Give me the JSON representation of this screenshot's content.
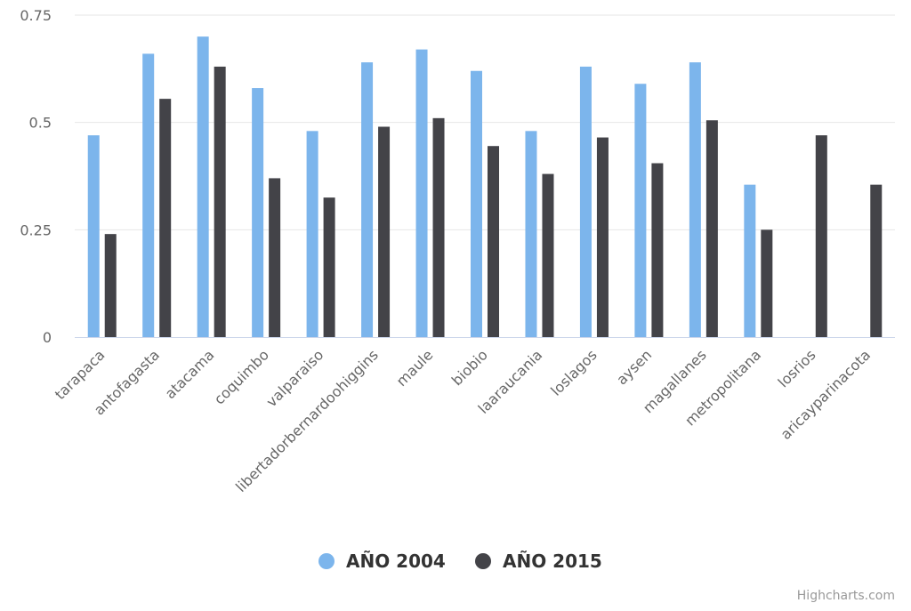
{
  "chart_data": {
    "type": "bar",
    "categories": [
      "tarapaca",
      "antofagasta",
      "atacama",
      "coquimbo",
      "valparaiso",
      "libertadorbernardoohiggins",
      "maule",
      "biobio",
      "laaraucania",
      "loslagos",
      "aysen",
      "magallanes",
      "metropolitana",
      "losrios",
      "aricayparinacota"
    ],
    "series": [
      {
        "name": "AÑO 2004",
        "color": "#7cb5ec",
        "values": [
          0.47,
          0.66,
          0.7,
          0.58,
          0.48,
          0.64,
          0.67,
          0.62,
          0.48,
          0.63,
          0.59,
          0.64,
          0.355,
          null,
          null
        ]
      },
      {
        "name": "AÑO 2015",
        "color": "#434348",
        "values": [
          0.24,
          0.555,
          0.63,
          0.37,
          0.325,
          0.49,
          0.51,
          0.445,
          0.38,
          0.465,
          0.405,
          0.505,
          0.25,
          0.47,
          0.355
        ]
      }
    ],
    "ylim": [
      0,
      0.75
    ],
    "yticks": [
      0,
      0.25,
      0.5,
      0.75
    ],
    "ytick_labels": [
      "0",
      "0.25",
      "0.5",
      "0.75"
    ],
    "grid": true,
    "legend_position": "bottom-center"
  },
  "credit": "Highcharts.com"
}
